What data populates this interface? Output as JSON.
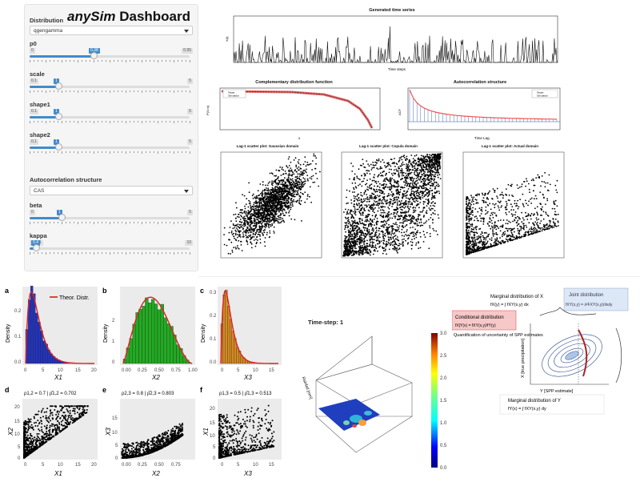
{
  "dashboard": {
    "title_italic": "anySim",
    "title_rest": " Dashboard",
    "distribution_label": "Distribution",
    "distribution_value": "qgengamma",
    "autocorr_label": "Autocorrelation structure",
    "autocorr_value": "CAS",
    "sliders": [
      {
        "label": "p0",
        "min": "0",
        "max": "0.95",
        "value": "0.38",
        "fraction": 0.4
      },
      {
        "label": "scale",
        "min": "0.1",
        "max": "5",
        "value": "1",
        "fraction": 0.18
      },
      {
        "label": "shape1",
        "min": "0.1",
        "max": "5",
        "value": "1",
        "fraction": 0.18
      },
      {
        "label": "shape2",
        "min": "0.1",
        "max": "5",
        "value": "1",
        "fraction": 0.18
      }
    ],
    "sliders2": [
      {
        "label": "beta",
        "min": "0",
        "max": "5",
        "value": "1",
        "fraction": 0.2
      },
      {
        "label": "kappa",
        "min": "0.001",
        "max": "10",
        "value": "0.4",
        "fraction": 0.04
      }
    ]
  },
  "plots": {
    "ts_title": "Generated time series",
    "ts_xlabel": "Time steps",
    "ts_ylabel": "X(t)",
    "cdf_title": "Complementary distribution function",
    "cdf_xlabel": "x",
    "cdf_ylabel": "P(X>x)",
    "acf_title": "Autocorrelation structure",
    "acf_xlabel": "Time Lag",
    "acf_ylabel": "ACF",
    "legend_target": "Target",
    "legend_sim": "Simulation",
    "scatter1_title": "Lag-1 scatter plot: Gaussian domain",
    "scatter2_title": "Lag-1 scatter plot: Copula domain",
    "scatter3_title": "Lag-1 scatter plot: Actual domain"
  },
  "figure": {
    "a": "a",
    "b": "b",
    "c": "c",
    "d": "d",
    "e": "e",
    "f": "f",
    "legend": "Theor. Distr.",
    "density": "Density",
    "x1": "X1",
    "x2": "X2",
    "x3": "X3",
    "rho_d": "ρ1,2 = 0.7 | ρ̂1,2 = 0.702",
    "rho_e": "ρ2,3 = 0.8 | ρ̂2,3 = 0.803",
    "rho_f": "ρ1,3 = 0.5 | ρ̂1,3 = 0.513",
    "timestep": "Time-step: 1",
    "rainfall": "Rainfall [mm]",
    "colorbar_ticks": [
      "3.0",
      "2.5",
      "2.0",
      "1.5",
      "1.0",
      "0.5",
      "0.0"
    ]
  },
  "joint": {
    "marg_x": "Marginal distribution of X",
    "marg_x_eq": "fX(y) = ∫ fXY(x,y) dx",
    "joint": "Joint distribution",
    "joint_eq": "fXY(x,y) = ∂²FXY(x,y)/∂x∂y",
    "cond": "Conditional distribution",
    "cond_eq": "fX|Y(x) = fXY(x,y)/fY(y)",
    "quant": "Quantification of uncertainty of SPP estimates",
    "xaxis": "Y [SPP estimate]",
    "yaxis": "X [true precipitation]",
    "marg_y": "Marginal distribution of Y",
    "marg_y_eq": "fY(x) = ∫ fXY(x,y) dy"
  }
}
